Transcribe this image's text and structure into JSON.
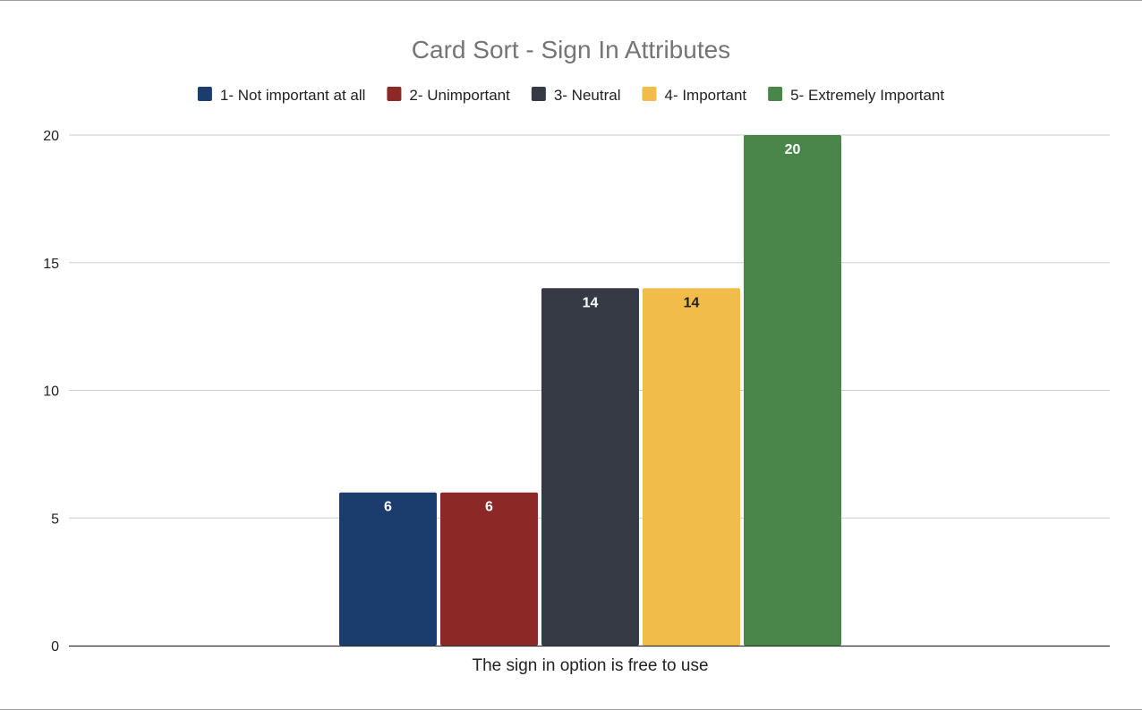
{
  "chart_data": {
    "type": "bar",
    "title": "Card Sort - Sign In Attributes",
    "categories": [
      "The sign in option is free to use"
    ],
    "series": [
      {
        "name": "1- Not important at all",
        "values": [
          6
        ],
        "color": "#1a3d6e",
        "label_color": "#ffffff"
      },
      {
        "name": "2- Unimportant",
        "values": [
          6
        ],
        "color": "#8c2826",
        "label_color": "#ffffff"
      },
      {
        "name": "3- Neutral",
        "values": [
          14
        ],
        "color": "#363a45",
        "label_color": "#ffffff"
      },
      {
        "name": "4- Important",
        "values": [
          14
        ],
        "color": "#f2bc4a",
        "label_color": "#222222"
      },
      {
        "name": "5- Extremely Important",
        "values": [
          20
        ],
        "color": "#4a8549",
        "label_color": "#ffffff"
      }
    ],
    "ylim": [
      0,
      20
    ],
    "yticks": [
      0,
      5,
      10,
      15,
      20
    ],
    "grid": true,
    "legend_position": "top",
    "data_labels": true
  }
}
